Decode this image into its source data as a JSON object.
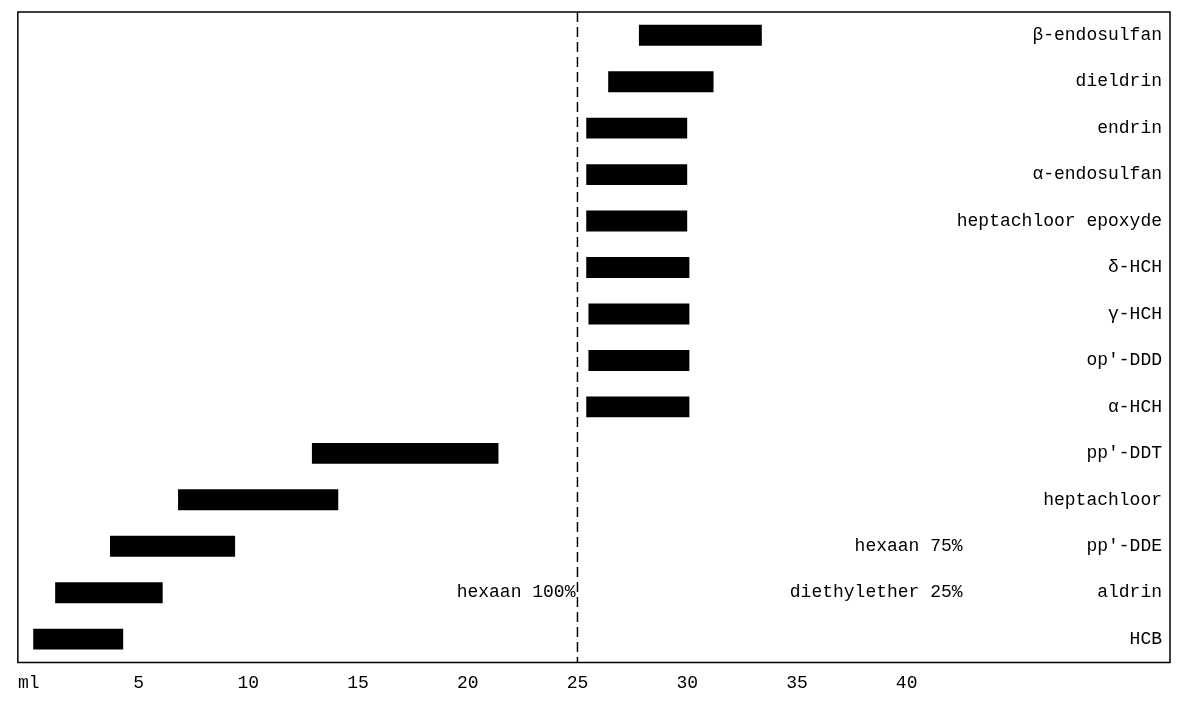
{
  "chart_data": {
    "type": "bar",
    "orientation": "horizontal",
    "categories": [
      "β-endosulfan",
      "dieldrin",
      "endrin",
      "α-endosulfan",
      "heptachloor epoxyde",
      "δ-HCH",
      "γ-HCH",
      "op'-DDD",
      "α-HCH",
      "pp'-DDT",
      "heptachloor",
      "pp'-DDE",
      "aldrin",
      "HCB"
    ],
    "base": [
      27.8,
      26.4,
      25.4,
      25.4,
      25.4,
      25.4,
      25.5,
      25.5,
      25.4,
      12.9,
      6.8,
      3.7,
      1.2,
      0.2
    ],
    "values": [
      5.6,
      4.8,
      4.6,
      4.6,
      4.6,
      4.7,
      4.6,
      4.6,
      4.7,
      8.5,
      7.3,
      5.7,
      4.9,
      4.1
    ],
    "color": "#000000",
    "xlim": [
      -0.5,
      52
    ],
    "xticks": [
      {
        "value": 0,
        "label": "ml"
      },
      5,
      10,
      15,
      20,
      25,
      30,
      35,
      40
    ],
    "grid": false,
    "legend": false,
    "ref_lines": [
      {
        "axis": "x",
        "value": 25,
        "label": null,
        "line_style": "dashed",
        "color": "#000000"
      }
    ],
    "annotations": [
      "hexaan 100%",
      "hexaan 75%",
      "diethylether 25%"
    ]
  }
}
